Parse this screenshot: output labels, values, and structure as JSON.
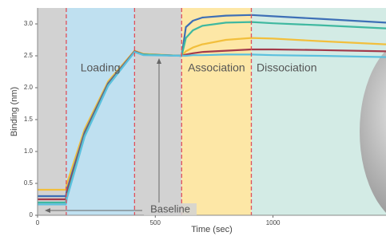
{
  "chart_data": {
    "type": "line",
    "x_label": "Time (sec)",
    "y_label": "Binding (nm)",
    "xlim": [
      0,
      1480
    ],
    "ylim": [
      0,
      3.25
    ],
    "xticks": [
      0,
      500,
      1000
    ],
    "yticks": [
      0,
      0.5,
      {
        "value": 1,
        "label": "1.0"
      },
      1.5,
      {
        "value": 2,
        "label": "2.0"
      },
      2.5,
      {
        "value": 3,
        "label": "3.0"
      }
    ],
    "phases": [
      {
        "start": 0,
        "end": 122,
        "color": "#d2d2d2"
      },
      {
        "label": "Loading",
        "start": 122,
        "end": 412,
        "color": "#bfe0f0"
      },
      {
        "start": 412,
        "end": 612,
        "color": "#d2d2d2"
      },
      {
        "label": "Association",
        "start": 612,
        "end": 908,
        "color": "#fde7a6"
      },
      {
        "label": "Dissociation",
        "start": 908,
        "end": 1480,
        "color": "#d3ebe5"
      }
    ],
    "annotation": "Baseline",
    "x": [
      0,
      120,
      125,
      200,
      300,
      412,
      450,
      612,
      630,
      660,
      700,
      800,
      908,
      1000,
      1200,
      1480
    ],
    "series": [
      {
        "color": "#f2bf3c",
        "values": [
          0.4,
          0.4,
          0.5,
          1.35,
          2.1,
          2.58,
          2.53,
          2.5,
          2.57,
          2.63,
          2.68,
          2.75,
          2.78,
          2.77,
          2.73,
          2.68
        ]
      },
      {
        "color": "#3d6fb6",
        "values": [
          0.3,
          0.3,
          0.4,
          1.3,
          2.07,
          2.57,
          2.52,
          2.5,
          2.95,
          3.05,
          3.1,
          3.13,
          3.14,
          3.12,
          3.08,
          3.02
        ]
      },
      {
        "color": "#a33a4a",
        "values": [
          0.25,
          0.25,
          0.35,
          1.27,
          2.05,
          2.57,
          2.52,
          2.5,
          2.52,
          2.54,
          2.56,
          2.58,
          2.6,
          2.6,
          2.59,
          2.57
        ]
      },
      {
        "color": "#3fb8a0",
        "values": [
          0.2,
          0.2,
          0.3,
          1.25,
          2.04,
          2.56,
          2.52,
          2.5,
          2.78,
          2.9,
          2.97,
          3.02,
          3.03,
          3.01,
          2.98,
          2.93
        ]
      },
      {
        "color": "#5bc0de",
        "values": [
          0.17,
          0.17,
          0.27,
          1.23,
          2.03,
          2.56,
          2.51,
          2.5,
          2.5,
          2.51,
          2.51,
          2.52,
          2.52,
          2.51,
          2.5,
          2.48
        ]
      }
    ]
  }
}
